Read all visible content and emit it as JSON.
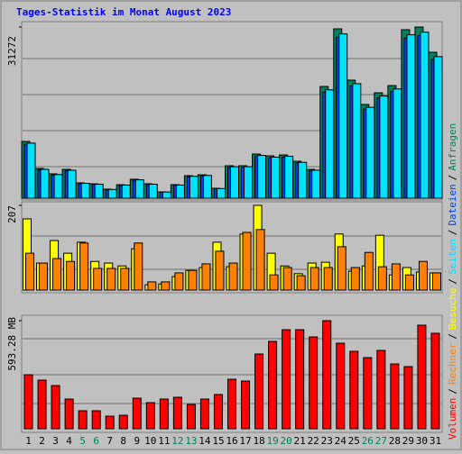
{
  "title": "Tages-Statistik im Monat August 2023",
  "legend_separator": "/",
  "chart_data": [
    {
      "type": "bar",
      "ylim": [
        0,
        31272
      ],
      "yticks": [
        31272
      ],
      "series": [
        {
          "name": "Anfragen",
          "color": "#00805c",
          "values": [
            10369,
            5431,
            4444,
            5267,
            2798,
            2633,
            1646,
            2469,
            3456,
            2633,
            1152,
            2469,
            4115,
            4279,
            1810,
            5925,
            5925,
            8065,
            7736,
            7900,
            6748,
            5267,
            20409,
            30943,
            21561,
            17117,
            19257,
            20574,
            30778,
            31272,
            26663
          ]
        },
        {
          "name": "Dateien",
          "color": "#0040ff",
          "values": [
            9851,
            5159,
            4222,
            5004,
            2658,
            2501,
            1564,
            2346,
            3283,
            2501,
            1094,
            2346,
            3909,
            4065,
            1720,
            5629,
            5629,
            7662,
            7349,
            7505,
            6411,
            5004,
            19389,
            29396,
            20483,
            16261,
            18294,
            19545,
            29239,
            29708,
            25330
          ]
        },
        {
          "name": "Seiten",
          "color": "#00e0ff",
          "values": [
            10058,
            5268,
            4310,
            5109,
            2714,
            2554,
            1597,
            2395,
            3352,
            2554,
            1117,
            2395,
            3992,
            4151,
            1756,
            5747,
            5747,
            7823,
            7504,
            7663,
            6546,
            5109,
            19797,
            30015,
            20914,
            16603,
            18679,
            19957,
            29855,
            30334,
            25863
          ]
        }
      ]
    },
    {
      "type": "bar",
      "ylim": [
        0,
        207
      ],
      "yticks": [
        207
      ],
      "series": [
        {
          "name": "Besuche",
          "color": "#ffff00",
          "values": [
            174,
            66,
            121,
            90,
            117,
            70,
            66,
            59,
            101,
            13,
            15,
            33,
            48,
            55,
            117,
            57,
            137,
            207,
            90,
            59,
            40,
            66,
            68,
            137,
            46,
            59,
            134,
            37,
            55,
            44,
            42
          ]
        },
        {
          "name": "Rechner",
          "color": "#ff8000",
          "values": [
            90,
            66,
            77,
            70,
            115,
            53,
            53,
            53,
            115,
            20,
            20,
            42,
            48,
            64,
            95,
            66,
            141,
            148,
            37,
            55,
            35,
            55,
            55,
            106,
            55,
            92,
            57,
            64,
            37,
            70,
            42
          ]
        }
      ]
    },
    {
      "type": "bar",
      "ylim": [
        0,
        593.28
      ],
      "yticks": [
        {
          "value": 593.28,
          "label": "593.28 MB"
        }
      ],
      "categories": [
        "1",
        "2",
        "3",
        "4",
        "5",
        "6",
        "7",
        "8",
        "9",
        "10",
        "11",
        "12",
        "13",
        "14",
        "15",
        "16",
        "17",
        "18",
        "19",
        "20",
        "21",
        "22",
        "23",
        "24",
        "25",
        "26",
        "27",
        "28",
        "29",
        "30",
        "31"
      ],
      "highlighted": [
        4,
        5,
        11,
        12,
        18,
        19,
        25,
        26
      ],
      "highlight_color": "#00805c",
      "series": [
        {
          "name": "Volumen",
          "color": "#ff0000",
          "values": [
            296.6,
            267.0,
            237.3,
            163.2,
            98.9,
            98.9,
            69.2,
            74.2,
            168.1,
            143.4,
            163.2,
            173.0,
            133.5,
            163.2,
            187.9,
            271.9,
            262.0,
            410.4,
            479.6,
            543.8,
            543.8,
            504.3,
            593.28,
            469.7,
            425.2,
            390.6,
            430.1,
            356.0,
            341.1,
            568.6,
            524.1
          ]
        }
      ]
    }
  ]
}
